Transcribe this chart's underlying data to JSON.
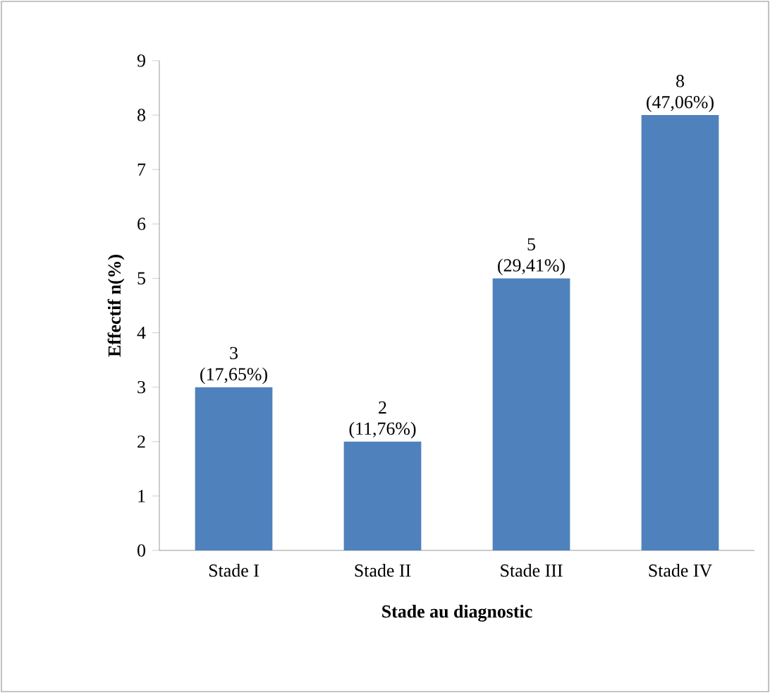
{
  "chart_data": {
    "type": "bar",
    "xlabel": "Stade au diagnostic",
    "ylabel": "Effectif n(%)",
    "categories": [
      "Stade I",
      "Stade II",
      "Stade III",
      "Stade IV"
    ],
    "values": [
      3,
      2,
      5,
      8
    ],
    "color": "#4f81bd",
    "value_labels": [
      "3 (17,65%)",
      "2 (11,76%)",
      "5 (29,41%)",
      "8 (47,06%)"
    ],
    "ylim": [
      0,
      9
    ],
    "yticks": [
      0,
      1,
      2,
      3,
      4,
      5,
      6,
      7,
      8,
      9
    ]
  }
}
